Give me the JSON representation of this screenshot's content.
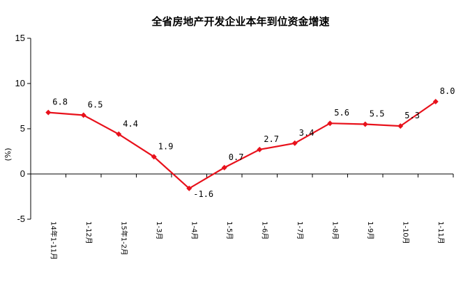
{
  "chart_data": {
    "type": "line",
    "title": "全省房地产开发企业本年到位资金增速",
    "ylabel": "(%)",
    "xlabel": "",
    "ylim": [
      -5,
      15
    ],
    "yticks": [
      -5,
      0,
      5,
      10,
      15
    ],
    "categories": [
      "14年1-11月",
      "1-12月",
      "15年1-2月",
      "1-3月",
      "1-4月",
      "1-5月",
      "1-6月",
      "1-7月",
      "1-8月",
      "1-9月",
      "1-10月",
      "1-11月"
    ],
    "values": [
      6.8,
      6.5,
      4.4,
      1.9,
      -1.6,
      0.7,
      2.7,
      3.4,
      5.6,
      5.5,
      5.3,
      8.0
    ],
    "data_labels": [
      "6.8",
      "6.5",
      "4.4",
      "1.9",
      "-1.6",
      "0.7",
      "2.7",
      "3.4",
      "5.6",
      "5.5",
      "5.3",
      "8.0"
    ],
    "grid": false,
    "legend": "none",
    "colors": {
      "line": "#e8111b",
      "marker": "#e8111b",
      "axis": "#000000"
    }
  }
}
